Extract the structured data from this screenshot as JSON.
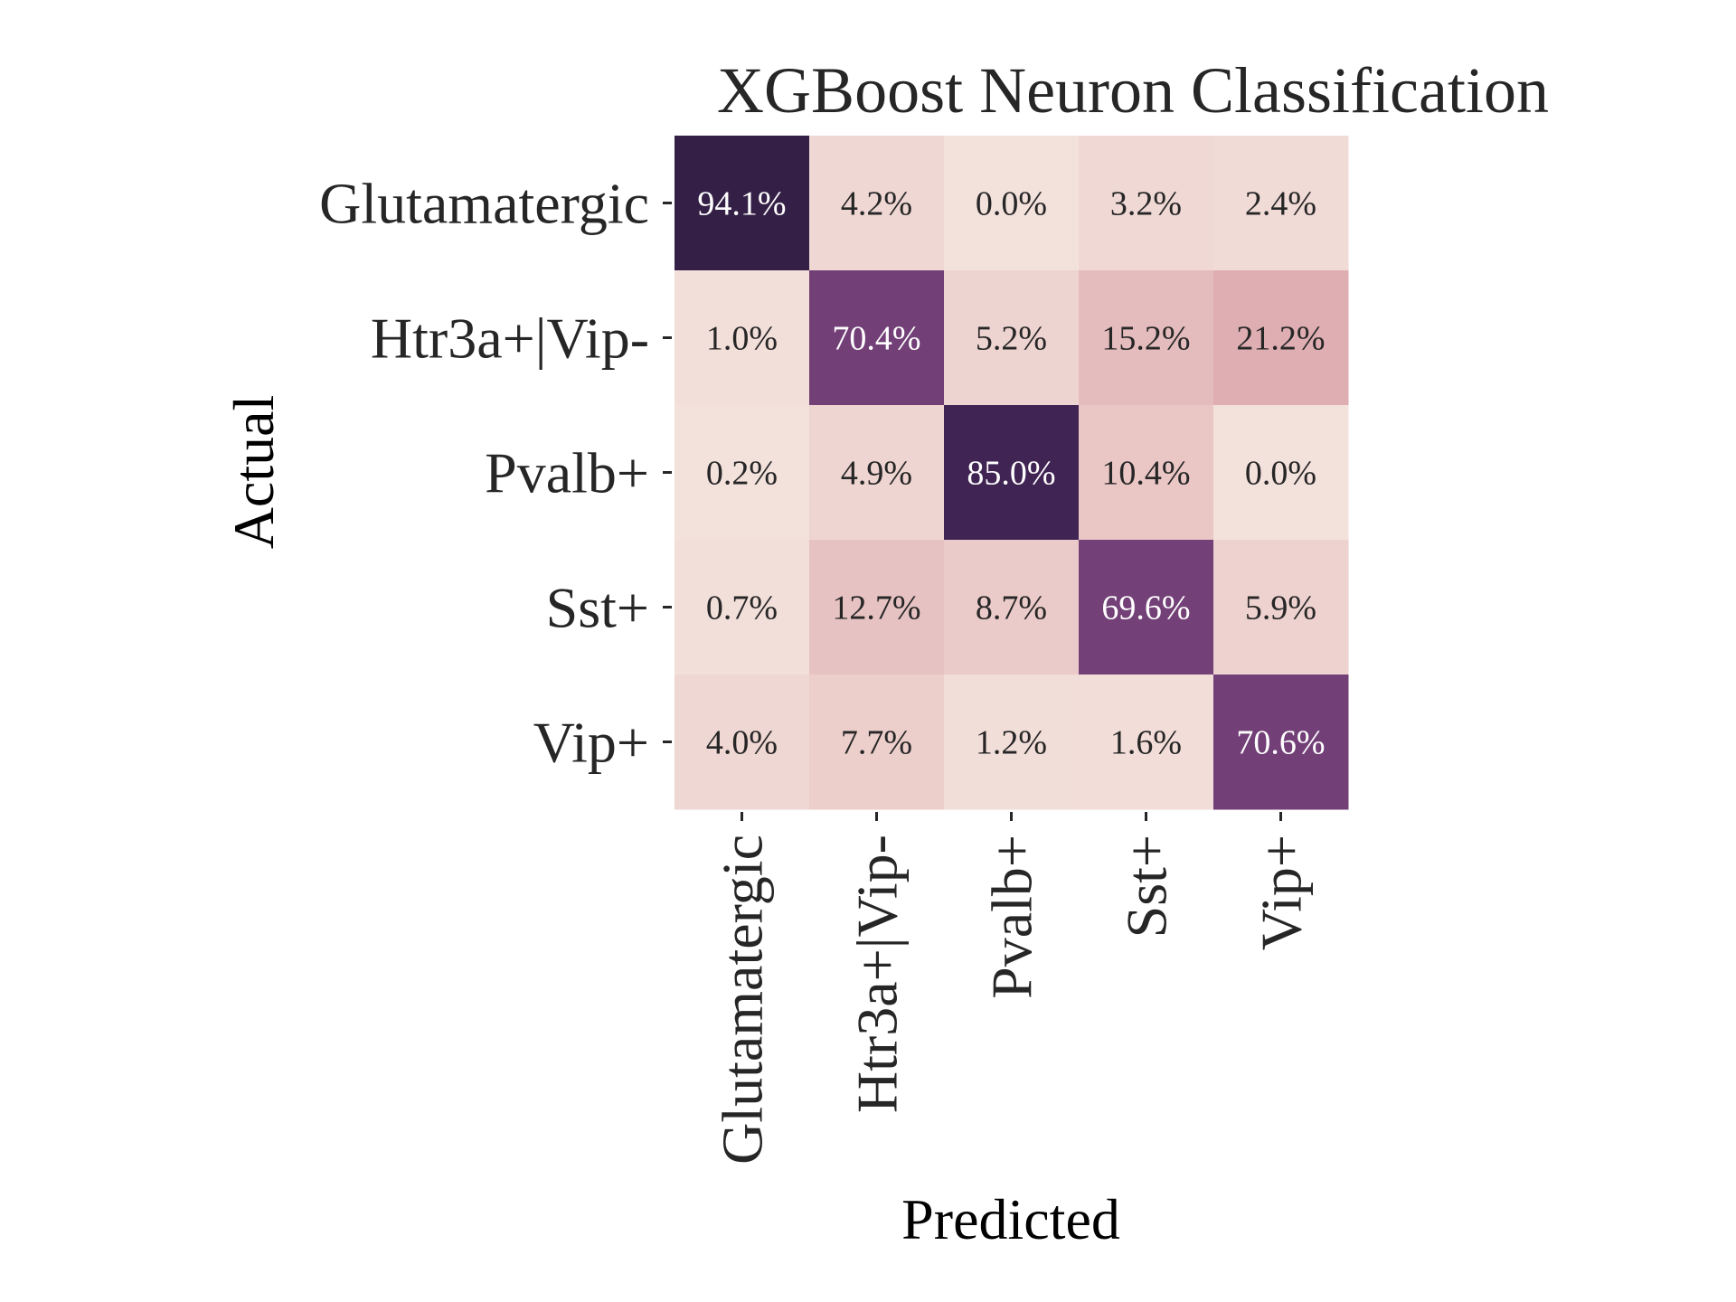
{
  "chart_data": {
    "type": "heatmap",
    "title": "XGBoost Neuron Classification",
    "xlabel": "Predicted",
    "ylabel": "Actual",
    "x_categories": [
      "Glutamatergic",
      "Htr3a+|Vip-",
      "Pvalb+",
      "Sst+",
      "Vip+"
    ],
    "y_categories": [
      "Glutamatergic",
      "Htr3a+|Vip-",
      "Pvalb+",
      "Sst+",
      "Vip+"
    ],
    "values": [
      [
        94.1,
        4.2,
        0.0,
        3.2,
        2.4
      ],
      [
        1.0,
        70.4,
        5.2,
        15.2,
        21.2
      ],
      [
        0.2,
        4.9,
        85.0,
        10.4,
        0.0
      ],
      [
        0.7,
        12.7,
        8.7,
        69.6,
        5.9
      ],
      [
        4.0,
        7.7,
        1.2,
        1.6,
        70.6
      ]
    ],
    "labels": [
      [
        "94.1%",
        "4.2%",
        "0.0%",
        "3.2%",
        "2.4%"
      ],
      [
        "1.0%",
        "70.4%",
        "5.2%",
        "15.2%",
        "21.2%"
      ],
      [
        "0.2%",
        "4.9%",
        "85.0%",
        "10.4%",
        "0.0%"
      ],
      [
        "0.7%",
        "12.7%",
        "8.7%",
        "69.6%",
        "5.9%"
      ],
      [
        "4.0%",
        "7.7%",
        "1.2%",
        "1.6%",
        "70.6%"
      ]
    ],
    "value_range": [
      0,
      100
    ],
    "colormap": "cubehelix light (pink to dark purple)",
    "colorbar": false,
    "colors": {
      "low": "#f3e1dc",
      "high": "#2d1e3e",
      "label_dark_text": "#262626",
      "label_light_text": "#ffffff"
    }
  }
}
